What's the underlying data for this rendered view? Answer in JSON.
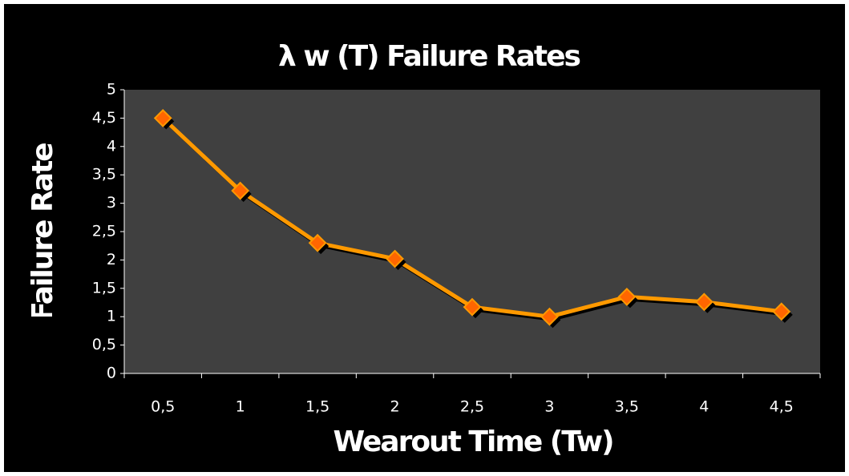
{
  "chart_data": {
    "type": "line",
    "title": "λ w (T) Failure Rates",
    "x_label": "Wearout Time (Tw)",
    "y_label": "Failure Rate",
    "categories": [
      "0,5",
      "1",
      "1,5",
      "2",
      "2,5",
      "3",
      "3,5",
      "4",
      "4,5"
    ],
    "series": [
      {
        "color": "#ff9900",
        "marker_color": "#ff6600",
        "values": [
          4.5,
          3.22,
          2.3,
          2.02,
          1.17,
          1.0,
          1.35,
          1.26,
          1.09
        ]
      }
    ],
    "ylim": [
      0,
      5
    ],
    "yticks": [
      0,
      {
        "value": 0.5,
        "label": "0,5"
      },
      1,
      {
        "value": 1.5,
        "label": "1,5"
      },
      2,
      {
        "value": 2.5,
        "label": "2,5"
      },
      3,
      {
        "value": 3.5,
        "label": "3,5"
      },
      4,
      {
        "value": 4.5,
        "label": "4,5"
      },
      5
    ],
    "grid": false
  }
}
